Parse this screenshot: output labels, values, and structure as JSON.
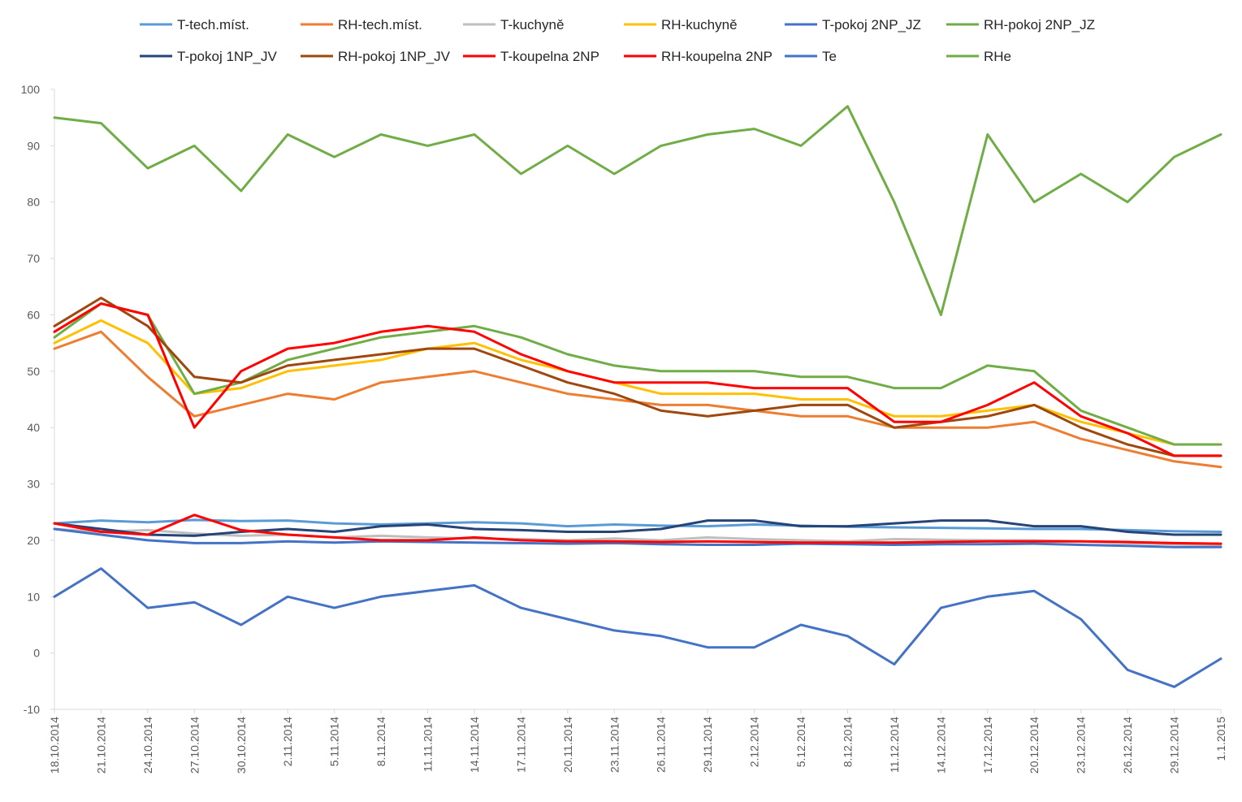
{
  "chart_data": {
    "type": "line",
    "title": "",
    "xlabel": "",
    "ylabel": "",
    "x_range": [
      "18.10.2014",
      "1.1.2015"
    ],
    "ylim": [
      -10,
      100
    ],
    "y_ticks": [
      "-10",
      "0",
      "10",
      "20",
      "30",
      "40",
      "50",
      "60",
      "70",
      "80",
      "90",
      "100"
    ],
    "x_ticks": [
      "18.10.2014",
      "21.10.2014",
      "24.10.2014",
      "27.10.2014",
      "30.10.2014",
      "2.11.2014",
      "5.11.2014",
      "8.11.2014",
      "11.11.2014",
      "14.11.2014",
      "17.11.2014",
      "20.11.2014",
      "23.11.2014",
      "26.11.2014",
      "29.11.2014",
      "2.12.2014",
      "5.12.2014",
      "8.12.2014",
      "11.12.2014",
      "14.12.2014",
      "17.12.2014",
      "20.12.2014",
      "23.12.2014",
      "26.12.2014",
      "29.12.2014",
      "1.1.2015"
    ],
    "grid": "none",
    "legend_position": "top",
    "series": [
      {
        "name": "T-tech.míst.",
        "color": "#5b9bd5",
        "x": [
          "18.10.2014",
          "21.10.2014",
          "24.10.2014",
          "27.10.2014",
          "30.10.2014",
          "2.11.2014",
          "5.11.2014",
          "8.11.2014",
          "11.11.2014",
          "14.11.2014",
          "17.11.2014",
          "20.11.2014",
          "23.11.2014",
          "26.11.2014",
          "29.11.2014",
          "2.12.2014",
          "5.12.2014",
          "8.12.2014",
          "11.12.2014",
          "14.12.2014",
          "17.12.2014",
          "20.12.2014",
          "23.12.2014",
          "26.12.2014",
          "29.12.2014",
          "1.1.2015"
        ],
        "values": [
          23,
          23.5,
          23.2,
          23.6,
          23.4,
          23.5,
          23,
          22.8,
          23,
          23.2,
          23,
          22.5,
          22.8,
          22.6,
          22.5,
          22.8,
          22.6,
          22.4,
          22.3,
          22.2,
          22.1,
          22,
          22,
          21.8,
          21.6,
          21.5
        ]
      },
      {
        "name": "RH-tech.míst.",
        "color": "#ed7d31",
        "x": [
          "18.10.2014",
          "21.10.2014",
          "24.10.2014",
          "27.10.2014",
          "30.10.2014",
          "2.11.2014",
          "5.11.2014",
          "8.11.2014",
          "11.11.2014",
          "14.11.2014",
          "17.11.2014",
          "20.11.2014",
          "23.11.2014",
          "26.11.2014",
          "29.11.2014",
          "2.12.2014",
          "5.12.2014",
          "8.12.2014",
          "11.12.2014",
          "14.12.2014",
          "17.12.2014",
          "20.12.2014",
          "23.12.2014",
          "26.12.2014",
          "29.12.2014",
          "1.1.2015"
        ],
        "values": [
          54,
          57,
          49,
          42,
          44,
          46,
          45,
          48,
          49,
          50,
          48,
          46,
          45,
          44,
          44,
          43,
          42,
          42,
          40,
          40,
          40,
          41,
          38,
          36,
          34,
          33
        ]
      },
      {
        "name": "T-kuchyně",
        "color": "#bfbfbf",
        "x": [
          "18.10.2014",
          "21.10.2014",
          "24.10.2014",
          "27.10.2014",
          "30.10.2014",
          "2.11.2014",
          "5.11.2014",
          "8.11.2014",
          "11.11.2014",
          "14.11.2014",
          "17.11.2014",
          "20.11.2014",
          "23.11.2014",
          "26.11.2014",
          "29.11.2014",
          "2.12.2014",
          "5.12.2014",
          "8.12.2014",
          "11.12.2014",
          "14.12.2014",
          "17.12.2014",
          "20.12.2014",
          "23.12.2014",
          "26.12.2014",
          "29.12.2014",
          "1.1.2015"
        ],
        "values": [
          22,
          21.5,
          21.8,
          21.2,
          20.8,
          21,
          20.5,
          20.8,
          20.5,
          20.3,
          20.2,
          20,
          20.3,
          20,
          20.5,
          20.2,
          20,
          19.8,
          20.2,
          20.1,
          20,
          20,
          19.8,
          19.5,
          19.3,
          19.2
        ]
      },
      {
        "name": "RH-kuchyně",
        "color": "#ffc000",
        "x": [
          "18.10.2014",
          "21.10.2014",
          "24.10.2014",
          "27.10.2014",
          "30.10.2014",
          "2.11.2014",
          "5.11.2014",
          "8.11.2014",
          "11.11.2014",
          "14.11.2014",
          "17.11.2014",
          "20.11.2014",
          "23.11.2014",
          "26.11.2014",
          "29.11.2014",
          "2.12.2014",
          "5.12.2014",
          "8.12.2014",
          "11.12.2014",
          "14.12.2014",
          "17.12.2014",
          "20.12.2014",
          "23.12.2014",
          "26.12.2014",
          "29.12.2014",
          "1.1.2015"
        ],
        "values": [
          55,
          59,
          55,
          46,
          47,
          50,
          51,
          52,
          54,
          55,
          52,
          50,
          48,
          46,
          46,
          46,
          45,
          45,
          42,
          42,
          43,
          44,
          41,
          39,
          37,
          37
        ]
      },
      {
        "name": "T-pokoj 2NP_JZ",
        "color": "#4472c4",
        "x": [
          "18.10.2014",
          "21.10.2014",
          "24.10.2014",
          "27.10.2014",
          "30.10.2014",
          "2.11.2014",
          "5.11.2014",
          "8.11.2014",
          "11.11.2014",
          "14.11.2014",
          "17.11.2014",
          "20.11.2014",
          "23.11.2014",
          "26.11.2014",
          "29.11.2014",
          "2.12.2014",
          "5.12.2014",
          "8.12.2014",
          "11.12.2014",
          "14.12.2014",
          "17.12.2014",
          "20.12.2014",
          "23.12.2014",
          "26.12.2014",
          "29.12.2014",
          "1.1.2015"
        ],
        "values": [
          22,
          21,
          20,
          19.5,
          19.5,
          19.8,
          19.6,
          19.8,
          19.7,
          19.6,
          19.5,
          19.4,
          19.5,
          19.3,
          19.2,
          19.2,
          19.4,
          19.3,
          19.2,
          19.3,
          19.3,
          19.4,
          19.2,
          19,
          18.8,
          18.8
        ]
      },
      {
        "name": "RH-pokoj 2NP_JZ",
        "color": "#70ad47",
        "x": [
          "18.10.2014",
          "21.10.2014",
          "24.10.2014",
          "27.10.2014",
          "30.10.2014",
          "2.11.2014",
          "5.11.2014",
          "8.11.2014",
          "11.11.2014",
          "14.11.2014",
          "17.11.2014",
          "20.11.2014",
          "23.11.2014",
          "26.11.2014",
          "29.11.2014",
          "2.12.2014",
          "5.12.2014",
          "8.12.2014",
          "11.12.2014",
          "14.12.2014",
          "17.12.2014",
          "20.12.2014",
          "23.12.2014",
          "26.12.2014",
          "29.12.2014",
          "1.1.2015"
        ],
        "values": [
          56,
          62,
          60,
          46,
          48,
          52,
          54,
          56,
          57,
          58,
          56,
          53,
          51,
          50,
          50,
          50,
          49,
          49,
          47,
          47,
          51,
          50,
          43,
          40,
          37,
          37
        ]
      },
      {
        "name": "T-pokoj 1NP_JV",
        "color": "#264478",
        "x": [
          "18.10.2014",
          "21.10.2014",
          "24.10.2014",
          "27.10.2014",
          "30.10.2014",
          "2.11.2014",
          "5.11.2014",
          "8.11.2014",
          "11.11.2014",
          "14.11.2014",
          "17.11.2014",
          "20.11.2014",
          "23.11.2014",
          "26.11.2014",
          "29.11.2014",
          "2.12.2014",
          "5.12.2014",
          "8.12.2014",
          "11.12.2014",
          "14.12.2014",
          "17.12.2014",
          "20.12.2014",
          "23.12.2014",
          "26.12.2014",
          "29.12.2014",
          "1.1.2015"
        ],
        "values": [
          23,
          22,
          21,
          20.8,
          21.5,
          22,
          21.5,
          22.5,
          22.8,
          22,
          21.8,
          21.5,
          21.5,
          22,
          23.5,
          23.5,
          22.5,
          22.5,
          23,
          23.5,
          23.5,
          22.5,
          22.5,
          21.5,
          21,
          21
        ]
      },
      {
        "name": "RH-pokoj 1NP_JV",
        "color": "#9e480e",
        "x": [
          "18.10.2014",
          "21.10.2014",
          "24.10.2014",
          "27.10.2014",
          "30.10.2014",
          "2.11.2014",
          "5.11.2014",
          "8.11.2014",
          "11.11.2014",
          "14.11.2014",
          "17.11.2014",
          "20.11.2014",
          "23.11.2014",
          "26.11.2014",
          "29.11.2014",
          "2.12.2014",
          "5.12.2014",
          "8.12.2014",
          "11.12.2014",
          "14.12.2014",
          "17.12.2014",
          "20.12.2014",
          "23.12.2014",
          "26.12.2014",
          "29.12.2014",
          "1.1.2015"
        ],
        "values": [
          58,
          63,
          58,
          49,
          48,
          51,
          52,
          53,
          54,
          54,
          51,
          48,
          46,
          43,
          42,
          43,
          44,
          44,
          40,
          41,
          42,
          44,
          40,
          37,
          35,
          35
        ]
      },
      {
        "name": "T-koupelna 2NP",
        "color": "#ff0000",
        "x": [
          "18.10.2014",
          "21.10.2014",
          "24.10.2014",
          "27.10.2014",
          "30.10.2014",
          "2.11.2014",
          "5.11.2014",
          "8.11.2014",
          "11.11.2014",
          "14.11.2014",
          "17.11.2014",
          "20.11.2014",
          "23.11.2014",
          "26.11.2014",
          "29.11.2014",
          "2.12.2014",
          "5.12.2014",
          "8.12.2014",
          "11.12.2014",
          "14.12.2014",
          "17.12.2014",
          "20.12.2014",
          "23.12.2014",
          "26.12.2014",
          "29.12.2014",
          "1.1.2015"
        ],
        "values": [
          23,
          21.5,
          21,
          24.5,
          21.8,
          21,
          20.5,
          20,
          20,
          20.5,
          20,
          19.8,
          19.8,
          19.7,
          19.8,
          19.7,
          19.6,
          19.6,
          19.6,
          19.7,
          19.8,
          19.8,
          19.8,
          19.7,
          19.5,
          19.4
        ]
      },
      {
        "name": "RH-koupelna 2NP",
        "color": "#ff0000",
        "x": [
          "18.10.2014",
          "21.10.2014",
          "24.10.2014",
          "27.10.2014",
          "30.10.2014",
          "2.11.2014",
          "5.11.2014",
          "8.11.2014",
          "11.11.2014",
          "14.11.2014",
          "17.11.2014",
          "20.11.2014",
          "23.11.2014",
          "26.11.2014",
          "29.11.2014",
          "2.12.2014",
          "5.12.2014",
          "8.12.2014",
          "11.12.2014",
          "14.12.2014",
          "17.12.2014",
          "20.12.2014",
          "23.12.2014",
          "26.12.2014",
          "29.12.2014",
          "1.1.2015"
        ],
        "values": [
          57,
          62,
          60,
          40,
          50,
          54,
          55,
          57,
          58,
          57,
          53,
          50,
          48,
          48,
          48,
          47,
          47,
          47,
          41,
          41,
          44,
          48,
          42,
          39,
          35,
          35
        ]
      },
      {
        "name": "Te",
        "color": "#4472c4",
        "x": [
          "18.10.2014",
          "21.10.2014",
          "24.10.2014",
          "27.10.2014",
          "30.10.2014",
          "2.11.2014",
          "5.11.2014",
          "8.11.2014",
          "11.11.2014",
          "14.11.2014",
          "17.11.2014",
          "20.11.2014",
          "23.11.2014",
          "26.11.2014",
          "29.11.2014",
          "2.12.2014",
          "5.12.2014",
          "8.12.2014",
          "11.12.2014",
          "14.12.2014",
          "17.12.2014",
          "20.12.2014",
          "23.12.2014",
          "26.12.2014",
          "29.12.2014",
          "1.1.2015"
        ],
        "values": [
          10,
          15,
          8,
          9,
          5,
          10,
          8,
          10,
          11,
          12,
          8,
          6,
          4,
          3,
          1,
          1,
          5,
          3,
          -2,
          8,
          10,
          11,
          6,
          -3,
          -6,
          -1
        ]
      },
      {
        "name": "RHe",
        "color": "#70ad47",
        "x": [
          "18.10.2014",
          "21.10.2014",
          "24.10.2014",
          "27.10.2014",
          "30.10.2014",
          "2.11.2014",
          "5.11.2014",
          "8.11.2014",
          "11.11.2014",
          "14.11.2014",
          "17.11.2014",
          "20.11.2014",
          "23.11.2014",
          "26.11.2014",
          "29.11.2014",
          "2.12.2014",
          "5.12.2014",
          "8.12.2014",
          "11.12.2014",
          "14.12.2014",
          "17.12.2014",
          "20.12.2014",
          "23.12.2014",
          "26.12.2014",
          "29.12.2014",
          "1.1.2015"
        ],
        "values": [
          95,
          94,
          86,
          90,
          82,
          92,
          88,
          92,
          90,
          92,
          85,
          90,
          85,
          90,
          92,
          93,
          90,
          97,
          80,
          60,
          92,
          80,
          85,
          80,
          88,
          92
        ]
      }
    ]
  }
}
